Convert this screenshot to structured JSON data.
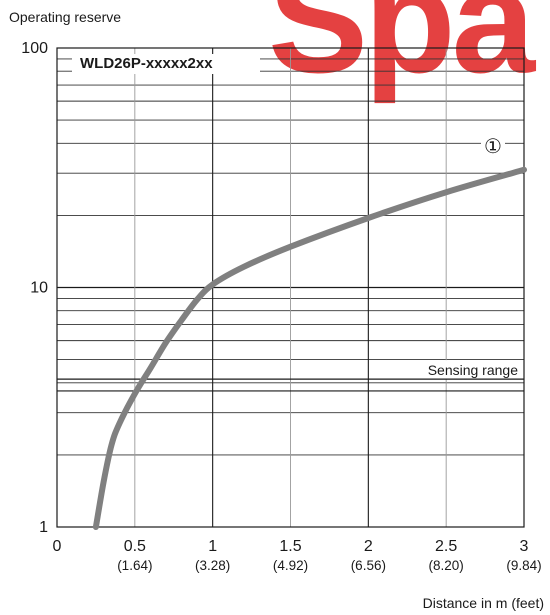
{
  "watermark": "Spa",
  "chart_data": {
    "type": "line",
    "title": "WLD26P-xxxxx2xx",
    "ylabel": "Operating reserve",
    "xlabel": "Distance in m (feet)",
    "y_scale": "log",
    "ylim": [
      1,
      100
    ],
    "xlim": [
      0,
      3
    ],
    "y_ticks": [
      {
        "value": 1,
        "label": "1"
      },
      {
        "value": 10,
        "label": "10"
      },
      {
        "value": 100,
        "label": "100"
      }
    ],
    "x_ticks": [
      {
        "value": 0,
        "label": "0",
        "sub": ""
      },
      {
        "value": 0.5,
        "label": "0.5",
        "sub": "(1.64)"
      },
      {
        "value": 1,
        "label": "1",
        "sub": "(3.28)"
      },
      {
        "value": 1.5,
        "label": "1.5",
        "sub": "(4.92)"
      },
      {
        "value": 2,
        "label": "2",
        "sub": "(6.56)"
      },
      {
        "value": 2.5,
        "label": "2.5",
        "sub": "(8.20)"
      },
      {
        "value": 3,
        "label": "3",
        "sub": "(9.84)"
      }
    ],
    "series": [
      {
        "marker": "①",
        "color": "#808080",
        "x": [
          0.25,
          0.3,
          0.35,
          0.4,
          0.5,
          0.6,
          0.7,
          0.8,
          0.9,
          1.0,
          1.2,
          1.5,
          2.0,
          2.5,
          3.0
        ],
        "y": [
          1.0,
          1.55,
          2.2,
          2.7,
          3.6,
          4.6,
          5.9,
          7.3,
          8.9,
          10.3,
          12.2,
          14.8,
          19.5,
          25.0,
          31.0
        ]
      }
    ],
    "annotations": [
      {
        "text": "Sensing range",
        "value": 3.7
      }
    ]
  }
}
